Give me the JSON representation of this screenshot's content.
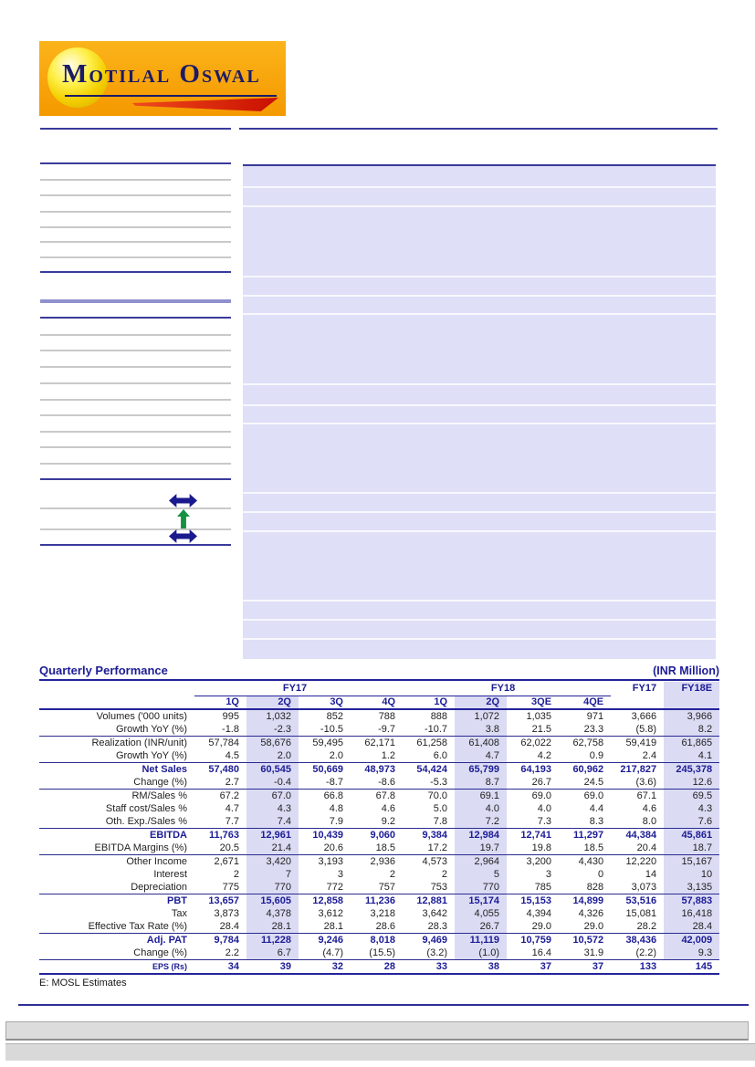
{
  "logo": {
    "brand": "Motilal Oswal"
  },
  "icons": {
    "rating_arrow_1": "left-right-arrow",
    "rating_arrow_up": "up-arrow",
    "rating_arrow_2": "left-right-arrow"
  },
  "colors": {
    "accent_navy": "#1c1c96",
    "highlight_lavender": "#dbdbf4",
    "panel_lavender": "#dfdff7",
    "logo_orange": "#f7a008",
    "logo_red": "#c80f00",
    "arrow_green": "#169144"
  },
  "table": {
    "title": "Quarterly Performance",
    "unit": "(INR Million)",
    "group_fy17": "FY17",
    "group_fy18": "FY18",
    "year_fy17": "FY17",
    "year_fy18e": "FY18E",
    "quarters": [
      "1Q",
      "2Q",
      "3Q",
      "4Q",
      "1Q",
      "2Q",
      "3QE",
      "4QE"
    ],
    "rows": [
      {
        "label": "Volumes ('000 units)",
        "values": [
          "995",
          "1,032",
          "852",
          "788",
          "888",
          "1,072",
          "1,035",
          "971",
          "3,666",
          "3,966"
        ]
      },
      {
        "label": "Growth YoY (%)",
        "indent": true,
        "values": [
          "-1.8",
          "-2.3",
          "-10.5",
          "-9.7",
          "-10.7",
          "3.8",
          "21.5",
          "23.3",
          "(5.8)",
          "8.2"
        ]
      },
      {
        "label": "Realization (INR/unit)",
        "rule": true,
        "values": [
          "57,784",
          "58,676",
          "59,495",
          "62,171",
          "61,258",
          "61,408",
          "62,022",
          "62,758",
          "59,419",
          "61,865"
        ]
      },
      {
        "label": "Growth YoY (%)",
        "indent": true,
        "values": [
          "4.5",
          "2.0",
          "2.0",
          "1.2",
          "6.0",
          "4.7",
          "4.2",
          "0.9",
          "2.4",
          "4.1"
        ]
      },
      {
        "label": "Net Sales",
        "bold": true,
        "rule": true,
        "values": [
          "57,480",
          "60,545",
          "50,669",
          "48,973",
          "54,424",
          "65,799",
          "64,193",
          "60,962",
          "217,827",
          "245,378"
        ]
      },
      {
        "label": "Change (%)",
        "indent": true,
        "values": [
          "2.7",
          "-0.4",
          "-8.7",
          "-8.6",
          "-5.3",
          "8.7",
          "26.7",
          "24.5",
          "(3.6)",
          "12.6"
        ]
      },
      {
        "label": "RM/Sales %",
        "rule": true,
        "values": [
          "67.2",
          "67.0",
          "66.8",
          "67.8",
          "70.0",
          "69.1",
          "69.0",
          "69.0",
          "67.1",
          "69.5"
        ]
      },
      {
        "label": "Staff cost/Sales %",
        "values": [
          "4.7",
          "4.3",
          "4.8",
          "4.6",
          "5.0",
          "4.0",
          "4.0",
          "4.4",
          "4.6",
          "4.3"
        ]
      },
      {
        "label": "Oth. Exp./Sales %",
        "values": [
          "7.7",
          "7.4",
          "7.9",
          "9.2",
          "7.8",
          "7.2",
          "7.3",
          "8.3",
          "8.0",
          "7.6"
        ]
      },
      {
        "label": "EBITDA",
        "bold": true,
        "rule": true,
        "values": [
          "11,763",
          "12,961",
          "10,439",
          "9,060",
          "9,384",
          "12,984",
          "12,741",
          "11,297",
          "44,384",
          "45,861"
        ]
      },
      {
        "label": "EBITDA Margins (%)",
        "indent": true,
        "values": [
          "20.5",
          "21.4",
          "20.6",
          "18.5",
          "17.2",
          "19.7",
          "19.8",
          "18.5",
          "20.4",
          "18.7"
        ]
      },
      {
        "label": "Other Income",
        "rule": true,
        "values": [
          "2,671",
          "3,420",
          "3,193",
          "2,936",
          "4,573",
          "2,964",
          "3,200",
          "4,430",
          "12,220",
          "15,167"
        ]
      },
      {
        "label": "Interest",
        "values": [
          "2",
          "7",
          "3",
          "2",
          "2",
          "5",
          "3",
          "0",
          "14",
          "10"
        ]
      },
      {
        "label": "Depreciation",
        "values": [
          "775",
          "770",
          "772",
          "757",
          "753",
          "770",
          "785",
          "828",
          "3,073",
          "3,135"
        ]
      },
      {
        "label": "PBT",
        "bold": true,
        "rule": true,
        "values": [
          "13,657",
          "15,605",
          "12,858",
          "11,236",
          "12,881",
          "15,174",
          "15,153",
          "14,899",
          "53,516",
          "57,883"
        ]
      },
      {
        "label": "Tax",
        "values": [
          "3,873",
          "4,378",
          "3,612",
          "3,218",
          "3,642",
          "4,055",
          "4,394",
          "4,326",
          "15,081",
          "16,418"
        ]
      },
      {
        "label": "Effective Tax Rate (%)",
        "indent": true,
        "values": [
          "28.4",
          "28.1",
          "28.1",
          "28.6",
          "28.3",
          "26.7",
          "29.0",
          "29.0",
          "28.2",
          "28.4"
        ]
      },
      {
        "label": "Adj. PAT",
        "bold": true,
        "rule": true,
        "values": [
          "9,784",
          "11,228",
          "9,246",
          "8,018",
          "9,469",
          "11,119",
          "10,759",
          "10,572",
          "38,436",
          "42,009"
        ]
      },
      {
        "label": "Change (%)",
        "indent": true,
        "values": [
          "2.2",
          "6.7",
          "(4.7)",
          "(15.5)",
          "(3.2)",
          "(1.0)",
          "16.4",
          "31.9",
          "(2.2)",
          "9.3"
        ]
      },
      {
        "label": "EPS (Rs)",
        "bold": true,
        "rule": true,
        "small": true,
        "nohl": true,
        "values": [
          "34",
          "39",
          "32",
          "28",
          "33",
          "38",
          "37",
          "37",
          "133",
          "145"
        ]
      }
    ],
    "footnote": "E: MOSL Estimates"
  }
}
